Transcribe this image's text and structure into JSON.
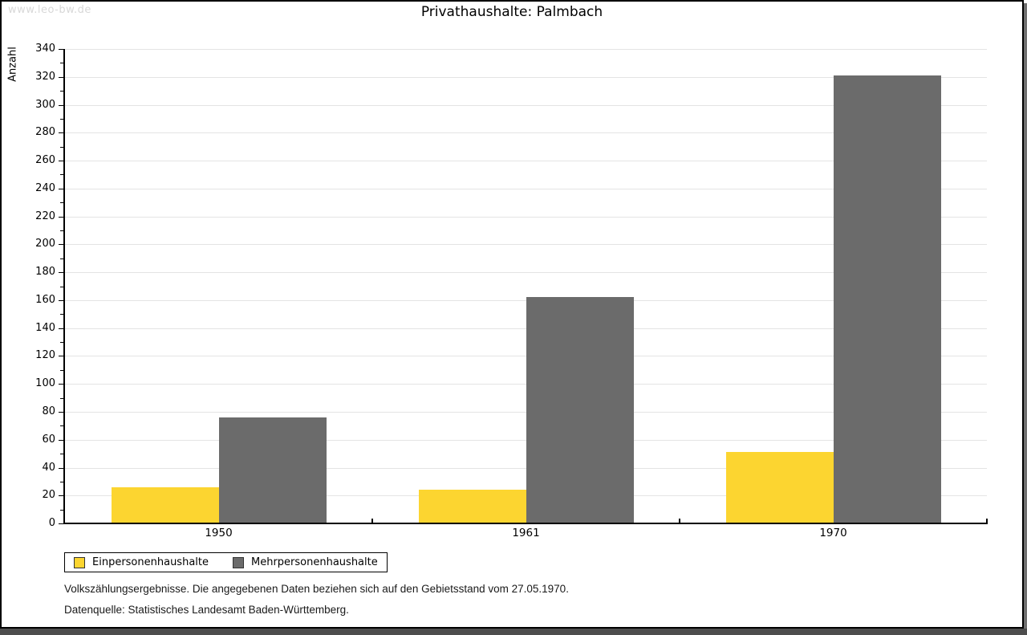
{
  "watermark": "www.leo-bw.de",
  "chart_data": {
    "type": "bar",
    "title": "Privathaushalte: Palmbach",
    "ylabel": "Anzahl",
    "xlabel": "",
    "categories": [
      "1950",
      "1961",
      "1970"
    ],
    "series": [
      {
        "name": "Einpersonenhaushalte",
        "color": "#fcd530",
        "values": [
          26,
          24,
          51
        ]
      },
      {
        "name": "Mehrpersonenhaushalte",
        "color": "#6b6b6b",
        "values": [
          76,
          162,
          321
        ]
      }
    ],
    "ylim": [
      0,
      340
    ],
    "ytick_step": 20,
    "ytick_minor_step": 10,
    "grid": true,
    "gridline_color": "#e4e4e4",
    "legend_position": "bottom-left"
  },
  "footer": {
    "line1": "Volkszählungsergebnisse. Die angegebenen Daten beziehen sich auf den Gebietsstand vom 27.05.1970.",
    "line2": "Datenquelle: Statistisches Landesamt Baden-Württemberg."
  }
}
